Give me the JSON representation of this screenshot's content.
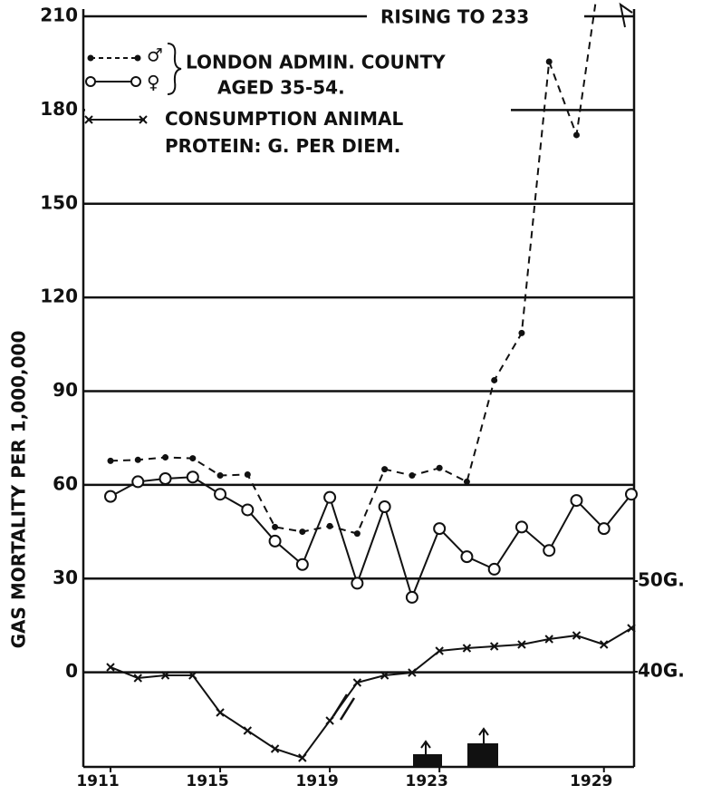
{
  "chart_data": {
    "type": "line",
    "annotations": [
      "RISING TO 233",
      "LONDON ADMIN. COUNTY",
      "AGED 35-54."
    ],
    "y_label": "GAS MORTALITY PER 1,000,000",
    "x": [
      1911,
      1912,
      1913,
      1914,
      1915,
      1916,
      1917,
      1918,
      1919,
      1920,
      1921,
      1922,
      1923,
      1924,
      1925,
      1926,
      1927,
      1928,
      1929,
      1930
    ],
    "xlim": [
      1911,
      1930
    ],
    "xticks": [
      1911,
      1915,
      1919,
      1923,
      1929
    ],
    "ylim": [
      -30,
      210
    ],
    "yticks": [
      0,
      30,
      60,
      90,
      120,
      150,
      180,
      210
    ],
    "y2lim": [
      29.6,
      112.3
    ],
    "y2ticks": [
      {
        "value": 40,
        "label": "40G."
      },
      {
        "value": 50,
        "label": "50G."
      }
    ],
    "grid": true,
    "series": [
      {
        "name": "♂",
        "color": "#111111",
        "style": "dashed",
        "marker": "dot",
        "values": [
          67.7,
          68,
          68.8,
          68.5,
          63,
          63.3,
          46.5,
          45,
          46.8,
          44.4,
          65,
          63,
          65.4,
          61,
          93.5,
          108.6,
          195.5,
          172,
          233,
          null
        ]
      },
      {
        "name": "♀",
        "color": "#111111",
        "style": "solid",
        "marker": "circle",
        "values": [
          56.3,
          61,
          62,
          62.5,
          57,
          52,
          42,
          34.5,
          56,
          28.5,
          53,
          24,
          46,
          37,
          33,
          46.5,
          39,
          55,
          46,
          57
        ]
      },
      {
        "name": "CONSUMPTION ANIMAL PROTEIN: G. PER DIEM.",
        "color": "#111111",
        "style": "solid",
        "marker": "cross",
        "axis": "y2",
        "values": [
          40.5,
          39.3,
          39.6,
          39.6,
          35.5,
          33.5,
          31.5,
          30.5,
          34.6,
          38.8,
          39.6,
          39.9,
          42.3,
          42.6,
          42.8,
          43,
          43.6,
          44,
          43,
          44.8
        ]
      }
    ]
  }
}
